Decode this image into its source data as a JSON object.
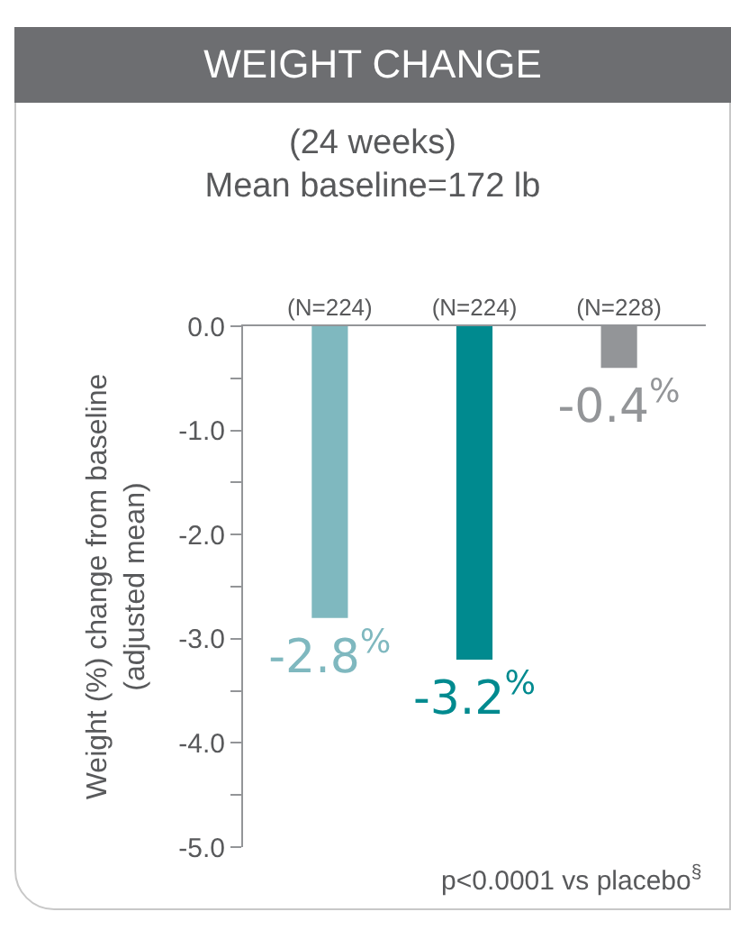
{
  "chart_data": {
    "type": "bar",
    "title": "WEIGHT CHANGE",
    "subtitle": "(24 weeks)\nMean baseline=172 lb",
    "ylabel": "Weight (%) change from baseline\n(adjusted mean)",
    "categories": [
      "(N=224)",
      "(N=224)",
      "(N=228)"
    ],
    "values": [
      -2.8,
      -3.2,
      -0.4
    ],
    "colors": [
      "#7fb8bf",
      "#008a8f",
      "#939598"
    ],
    "value_labels": [
      "-2.8$^{%}$",
      "-3.2$^{%}$",
      "-0.4$^{%}$"
    ],
    "ylim": [
      -5,
      0
    ],
    "yticks": [
      {
        "value": 0,
        "label": "0.0"
      },
      {
        "value": -0.5,
        "label": null
      },
      {
        "value": -1,
        "label": "-1.0"
      },
      {
        "value": -1.5,
        "label": null
      },
      {
        "value": -2,
        "label": "-2.0"
      },
      {
        "value": -2.5,
        "label": null
      },
      {
        "value": -3,
        "label": "-3.0"
      },
      {
        "value": -3.5,
        "label": null
      },
      {
        "value": -4,
        "label": "-4.0"
      },
      {
        "value": -4.5,
        "label": null
      },
      {
        "value": -5,
        "label": "-5.0"
      }
    ],
    "grid": false,
    "legend": false,
    "annotations": [
      "p<0.0001 vs placebo$^{§}$"
    ]
  }
}
